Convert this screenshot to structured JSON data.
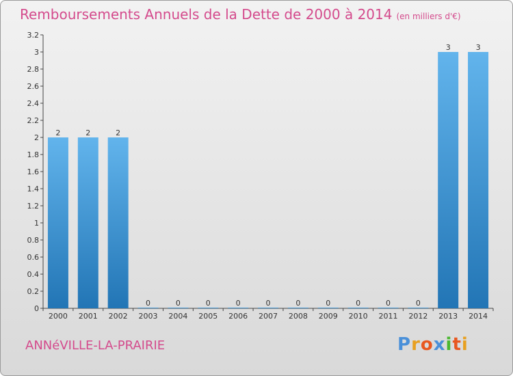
{
  "title": "Remboursements Annuels de la Dette de 2000 à 2014",
  "unit": "(en milliers d'€)",
  "location": "ANNéVILLE-LA-PRAIRIE",
  "brand": {
    "letters": [
      "P",
      "r",
      "o",
      "x",
      "i",
      "t",
      "i"
    ],
    "colors": [
      "#4a90d9",
      "#e8a020",
      "#e85820",
      "#4a90d9",
      "#4ab830",
      "#e85820",
      "#e8a020"
    ]
  },
  "colors": {
    "title": "#d44a8c",
    "bar_light": "#62b4ec",
    "bar_dark": "#2275b5"
  },
  "chart_data": {
    "type": "bar",
    "title": "Remboursements Annuels de la Dette de 2000 à 2014",
    "xlabel": "",
    "ylabel": "",
    "categories": [
      "2000",
      "2001",
      "2002",
      "2003",
      "2004",
      "2005",
      "2006",
      "2007",
      "2008",
      "2009",
      "2010",
      "2011",
      "2012",
      "2013",
      "2014"
    ],
    "values": [
      2,
      2,
      2,
      0,
      0,
      0,
      0,
      0,
      0,
      0,
      0,
      0,
      0,
      3,
      3
    ],
    "data_labels": [
      "2",
      "2",
      "2",
      "0",
      "0",
      "0",
      "0",
      "0",
      "0",
      "0",
      "0",
      "0",
      "0",
      "3",
      "3"
    ],
    "ylim": [
      0,
      3.2
    ],
    "y_ticks": [
      0,
      0.2,
      0.4,
      0.6,
      0.8,
      1,
      1.2,
      1.4,
      1.6,
      1.8,
      2,
      2.2,
      2.4,
      2.6,
      2.8,
      3,
      3.2
    ],
    "y_tick_labels": [
      "0",
      "0.2",
      "0.4",
      "0.6",
      "0.8",
      "1",
      "1.2",
      "1.4",
      "1.6",
      "1.8",
      "2",
      "2.2",
      "2.4",
      "2.6",
      "2.8",
      "3",
      "3.2"
    ],
    "grid": false,
    "legend": "none"
  }
}
